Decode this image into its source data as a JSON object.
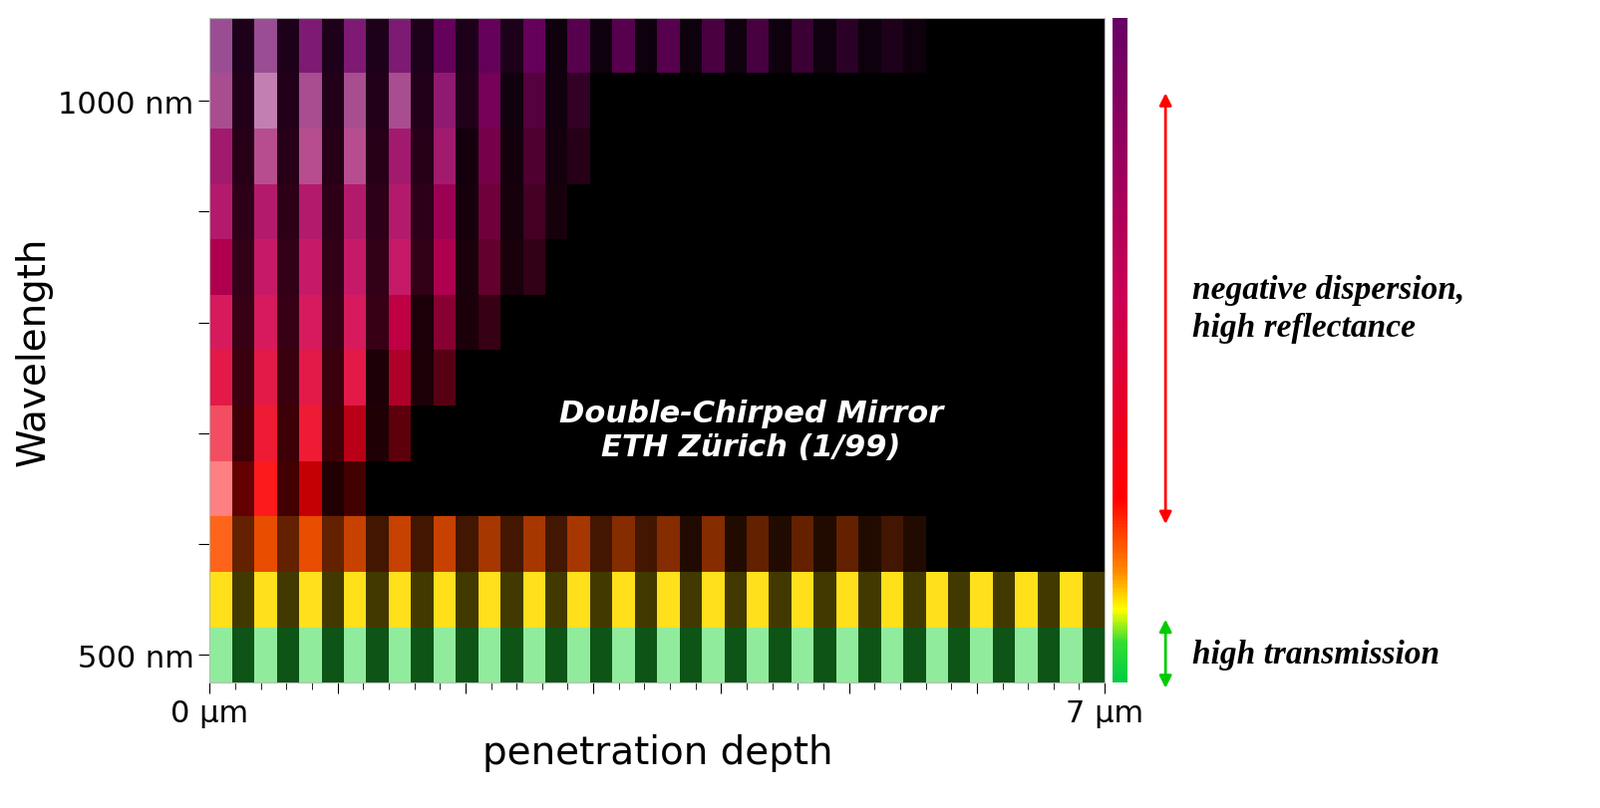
{
  "chart_data": {
    "type": "heatmap",
    "annotation": "Double-Chirped Mirror\nETH Zürich (1/99)",
    "x_label": "penetration depth",
    "y_label": "Wavelength",
    "xlim": [
      0,
      7
    ],
    "ylim": [
      475,
      1075
    ],
    "xticks": [
      {
        "value": 0,
        "label": "0 µm"
      },
      {
        "value": 7,
        "label": "7 µm"
      }
    ],
    "xticks_unlabeled": [
      1,
      2,
      3,
      4,
      5,
      6
    ],
    "xticks_minor": [
      0.2,
      0.4,
      0.6,
      0.8,
      1.2,
      1.4,
      1.6,
      1.8,
      2.2,
      2.4,
      2.6,
      2.8,
      3.2,
      3.4,
      3.6,
      3.8,
      4.2,
      4.4,
      4.6,
      4.8,
      5.2,
      5.4,
      5.6,
      5.8,
      6.2,
      6.4,
      6.6,
      6.8
    ],
    "yticks": [
      {
        "value": 500,
        "label": "500 nm"
      },
      {
        "value": 1000,
        "label": "1000 nm"
      }
    ],
    "yticks_unlabeled": [
      600,
      700,
      800,
      900
    ],
    "x_edges": [
      0,
      0.175,
      0.35,
      0.525,
      0.7,
      0.875,
      1.05,
      1.225,
      1.4,
      1.575,
      1.75,
      1.925,
      2.1,
      2.275,
      2.45,
      2.625,
      2.8,
      2.975,
      3.15,
      3.325,
      3.5,
      3.675,
      3.85,
      4.025,
      4.2,
      4.375,
      4.55,
      4.725,
      4.9,
      5.075,
      5.25,
      5.425,
      5.6,
      5.775,
      5.95,
      6.125,
      6.3,
      6.475,
      6.65,
      6.825,
      7.0
    ],
    "y_edges": [
      475,
      525,
      575,
      625,
      675,
      725,
      775,
      825,
      875,
      925,
      975,
      1025,
      1075
    ],
    "cells": [
      [
        1.0,
        0.3,
        1.0,
        0.3,
        1.0,
        0.3,
        1.0,
        0.3,
        1.0,
        0.3,
        1.0,
        0.3,
        1.0,
        0.3,
        1.0,
        0.3,
        1.0,
        0.3,
        1.0,
        0.3,
        1.0,
        0.3,
        1.0,
        0.3,
        1.0,
        0.3,
        1.0,
        0.3,
        1.0,
        0.3,
        1.0,
        0.3,
        1.0,
        0.3,
        1.0,
        0.3,
        1.0,
        0.3,
        1.0,
        0.3
      ],
      [
        0.8,
        0.2,
        0.8,
        0.2,
        0.8,
        0.2,
        0.8,
        0.2,
        0.8,
        0.2,
        0.8,
        0.2,
        0.8,
        0.2,
        0.8,
        0.2,
        0.8,
        0.2,
        0.8,
        0.2,
        0.8,
        0.2,
        0.8,
        0.2,
        0.8,
        0.2,
        0.8,
        0.2,
        0.8,
        0.2,
        0.8,
        0.2,
        0.8,
        0.2,
        0.8,
        0.2,
        0.8,
        0.2,
        0.8,
        0.2
      ],
      [
        0.8,
        0.3,
        0.7,
        0.3,
        0.7,
        0.3,
        0.6,
        0.2,
        0.6,
        0.2,
        0.6,
        0.2,
        0.5,
        0.2,
        0.5,
        0.2,
        0.5,
        0.2,
        0.4,
        0.2,
        0.4,
        0.1,
        0.4,
        0.1,
        0.3,
        0.1,
        0.3,
        0.1,
        0.3,
        0.1,
        0.2,
        0.1,
        0,
        0,
        0,
        0,
        0,
        0,
        0,
        0
      ],
      [
        1.0,
        0.3,
        0.8,
        0.2,
        0.6,
        0.1,
        0.2,
        0,
        0,
        0,
        0,
        0,
        0,
        0,
        0,
        0,
        0,
        0,
        0,
        0,
        0,
        0,
        0,
        0,
        0,
        0,
        0,
        0,
        0,
        0,
        0,
        0,
        0,
        0,
        0,
        0,
        0,
        0,
        0,
        0
      ],
      [
        0.9,
        0.2,
        0.8,
        0.2,
        0.8,
        0.2,
        0.6,
        0.1,
        0.3,
        0,
        0,
        0,
        0,
        0,
        0,
        0,
        0,
        0,
        0,
        0,
        0,
        0,
        0,
        0,
        0,
        0,
        0,
        0,
        0,
        0,
        0,
        0,
        0,
        0,
        0,
        0,
        0,
        0,
        0,
        0
      ],
      [
        0.8,
        0.2,
        0.8,
        0.2,
        0.8,
        0.2,
        0.8,
        0.1,
        0.6,
        0.1,
        0.3,
        0,
        0,
        0,
        0,
        0,
        0,
        0,
        0,
        0,
        0,
        0,
        0,
        0,
        0,
        0,
        0,
        0,
        0,
        0,
        0,
        0,
        0,
        0,
        0,
        0,
        0,
        0,
        0,
        0
      ],
      [
        0.8,
        0.2,
        0.8,
        0.2,
        0.8,
        0.2,
        0.8,
        0.2,
        0.7,
        0.1,
        0.5,
        0.1,
        0.2,
        0,
        0,
        0,
        0,
        0,
        0,
        0,
        0,
        0,
        0,
        0,
        0,
        0,
        0,
        0,
        0,
        0,
        0,
        0,
        0,
        0,
        0,
        0,
        0,
        0,
        0,
        0
      ],
      [
        0.7,
        0.2,
        0.8,
        0.2,
        0.8,
        0.2,
        0.8,
        0.2,
        0.8,
        0.2,
        0.7,
        0.1,
        0.4,
        0.1,
        0.2,
        0,
        0,
        0,
        0,
        0,
        0,
        0,
        0,
        0,
        0,
        0,
        0,
        0,
        0,
        0,
        0,
        0,
        0,
        0,
        0,
        0,
        0,
        0,
        0,
        0
      ],
      [
        0.8,
        0.2,
        0.8,
        0.2,
        0.8,
        0.2,
        0.8,
        0.2,
        0.8,
        0.2,
        0.7,
        0.1,
        0.5,
        0.1,
        0.3,
        0.1,
        0,
        0,
        0,
        0,
        0,
        0,
        0,
        0,
        0,
        0,
        0,
        0,
        0,
        0,
        0,
        0,
        0,
        0,
        0,
        0,
        0,
        0,
        0,
        0
      ],
      [
        0.8,
        0.2,
        0.9,
        0.2,
        0.9,
        0.2,
        0.9,
        0.2,
        0.8,
        0.2,
        0.8,
        0.1,
        0.6,
        0.1,
        0.4,
        0.1,
        0.2,
        0,
        0,
        0,
        0,
        0,
        0,
        0,
        0,
        0,
        0,
        0,
        0,
        0,
        0,
        0,
        0,
        0,
        0,
        0,
        0,
        0,
        0,
        0
      ],
      [
        0.9,
        0.2,
        1.0,
        0.2,
        0.9,
        0.2,
        0.9,
        0.2,
        0.9,
        0.2,
        0.8,
        0.2,
        0.7,
        0.1,
        0.5,
        0.1,
        0.3,
        0,
        0,
        0,
        0,
        0,
        0,
        0,
        0,
        0,
        0,
        0,
        0,
        0,
        0,
        0,
        0,
        0,
        0,
        0,
        0,
        0,
        0,
        0
      ],
      [
        0.9,
        0.2,
        0.9,
        0.2,
        0.8,
        0.2,
        0.8,
        0.2,
        0.8,
        0.2,
        0.7,
        0.2,
        0.7,
        0.2,
        0.7,
        0.1,
        0.6,
        0.1,
        0.6,
        0.1,
        0.6,
        0.1,
        0.5,
        0.1,
        0.5,
        0.1,
        0.4,
        0.1,
        0.3,
        0.1,
        0.2,
        0.1,
        0,
        0,
        0,
        0,
        0,
        0,
        0,
        0
      ]
    ],
    "colorbar": {
      "range": [
        475,
        1075
      ],
      "colormap": [
        {
          "value": 475,
          "color": "#00cc44"
        },
        {
          "value": 510,
          "color": "#33dd33"
        },
        {
          "value": 540,
          "color": "#ffff00"
        },
        {
          "value": 575,
          "color": "#ff8800"
        },
        {
          "value": 640,
          "color": "#ff0000"
        },
        {
          "value": 820,
          "color": "#cc0055"
        },
        {
          "value": 1075,
          "color": "#660066"
        }
      ]
    },
    "bands": [
      {
        "label": "negative dispersion,\nhigh reflectance",
        "range": [
          618,
          1007
        ],
        "color": "#ff0000"
      },
      {
        "label": "high transmission",
        "range": [
          470,
          532
        ],
        "color": "#00cc00"
      }
    ]
  }
}
